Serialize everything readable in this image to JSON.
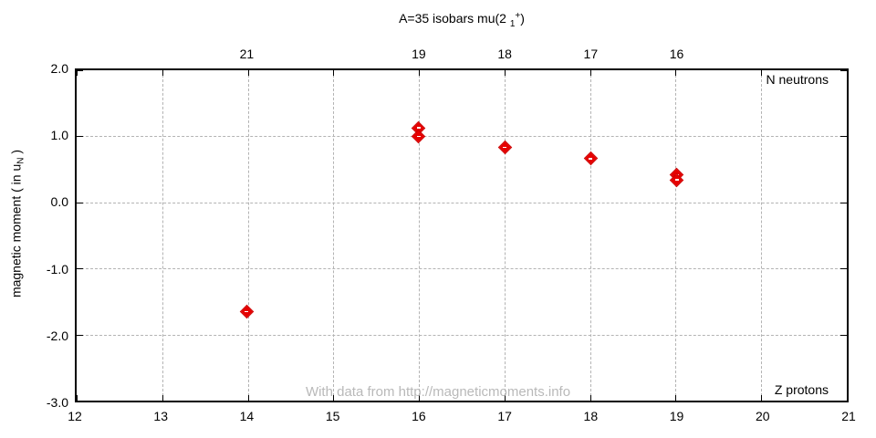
{
  "chart_data": {
    "type": "scatter",
    "title": "A=35 isobars mu(2 1+)",
    "title_parts": {
      "main": "A=35 isobars mu(2 ",
      "sub": "1",
      "sup": "+",
      "close": ")"
    },
    "xlabel": "Z protons",
    "x2label": "N neutrons",
    "ylabel": "magnetic moment ( in uN )",
    "ylabel_parts": {
      "main": "magnetic moment ( in u",
      "sub": "N",
      "close": " )"
    },
    "xlim": [
      12,
      21
    ],
    "ylim": [
      -3.0,
      2.0
    ],
    "grid": true,
    "legend": "none",
    "marker": "diamond",
    "marker_color": "#e60000",
    "x_ticks": [
      "12",
      "13",
      "14",
      "15",
      "16",
      "17",
      "18",
      "19",
      "20",
      "21"
    ],
    "y_ticks": [
      {
        "v": 2.0,
        "label": "2.0"
      },
      {
        "v": 1.0,
        "label": "1.0"
      },
      {
        "v": 0.0,
        "label": "0.0"
      },
      {
        "v": -1.0,
        "label": "-1.0"
      },
      {
        "v": -2.0,
        "label": "-2.0"
      },
      {
        "v": -3.0,
        "label": "-3.0"
      }
    ],
    "top_ticks": [
      {
        "z": 14,
        "label": "21"
      },
      {
        "z": 16,
        "label": "19"
      },
      {
        "z": 17,
        "label": "18"
      },
      {
        "z": 18,
        "label": "17"
      },
      {
        "z": 19,
        "label": "16"
      }
    ],
    "points": [
      {
        "z": 14,
        "n": 21,
        "mu": -1.64
      },
      {
        "z": 16,
        "n": 19,
        "mu": 1.11
      },
      {
        "z": 16,
        "n": 19,
        "mu": 0.98
      },
      {
        "z": 17,
        "n": 18,
        "mu": 0.82
      },
      {
        "z": 18,
        "n": 17,
        "mu": 0.65
      },
      {
        "z": 19,
        "n": 16,
        "mu": 0.41
      },
      {
        "z": 19,
        "n": 16,
        "mu": 0.33
      }
    ],
    "watermark": "With data from http://magneticmoments.info"
  }
}
